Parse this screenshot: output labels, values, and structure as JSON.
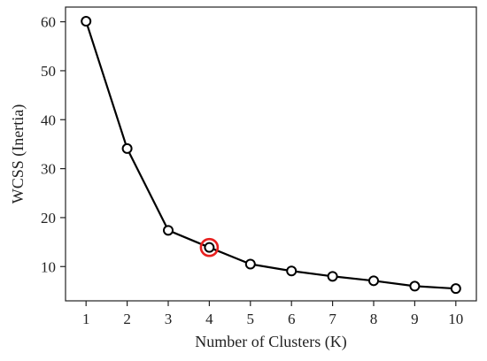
{
  "chart_data": {
    "type": "line",
    "title": "",
    "xlabel": "Number of Clusters (K)",
    "ylabel": "WCSS (Inertia)",
    "x": [
      1,
      2,
      3,
      4,
      5,
      6,
      7,
      8,
      9,
      10
    ],
    "xticks": [
      "1",
      "2",
      "3",
      "4",
      "5",
      "6",
      "7",
      "8",
      "9",
      "10"
    ],
    "yticks": [
      10,
      20,
      30,
      40,
      50,
      60
    ],
    "ytick_labels": [
      "10",
      "20",
      "30",
      "40",
      "50",
      "60"
    ],
    "xlim": [
      0.5,
      10.5
    ],
    "ylim": [
      3,
      63
    ],
    "series": [
      {
        "values": [
          60.1,
          34.1,
          17.4,
          13.9,
          10.5,
          9.1,
          8.0,
          7.1,
          6.0,
          5.5
        ],
        "color": "#000000",
        "marker": "open-circle"
      }
    ],
    "highlight": {
      "x": 4,
      "y": 13.9,
      "color": "#e8201f",
      "marker": "ring"
    },
    "grid": false,
    "legend": "none"
  }
}
